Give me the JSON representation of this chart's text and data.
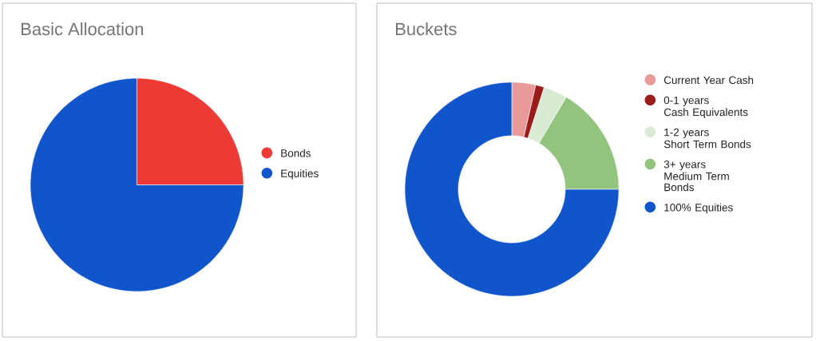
{
  "chart_data": [
    {
      "type": "pie",
      "title": "Basic Allocation",
      "categories": [
        "Bonds",
        "Equities"
      ],
      "values": [
        25,
        75
      ],
      "colors": [
        "#ee3a35",
        "#1155cc"
      ],
      "legend": "right"
    },
    {
      "type": "donut",
      "title": "Buckets",
      "categories": [
        "Current Year Cash",
        "0-1 years\nCash Equivalents",
        "1-2 years\nShort Term Bonds",
        "3+ years\nMedium Term Bonds",
        "100% Equities"
      ],
      "values": [
        3.6,
        1.3,
        3.6,
        16.5,
        75
      ],
      "colors": [
        "#ea9999",
        "#9c1c1c",
        "#d9ead3",
        "#93c47d",
        "#1155cc"
      ],
      "legend": "top right"
    }
  ]
}
